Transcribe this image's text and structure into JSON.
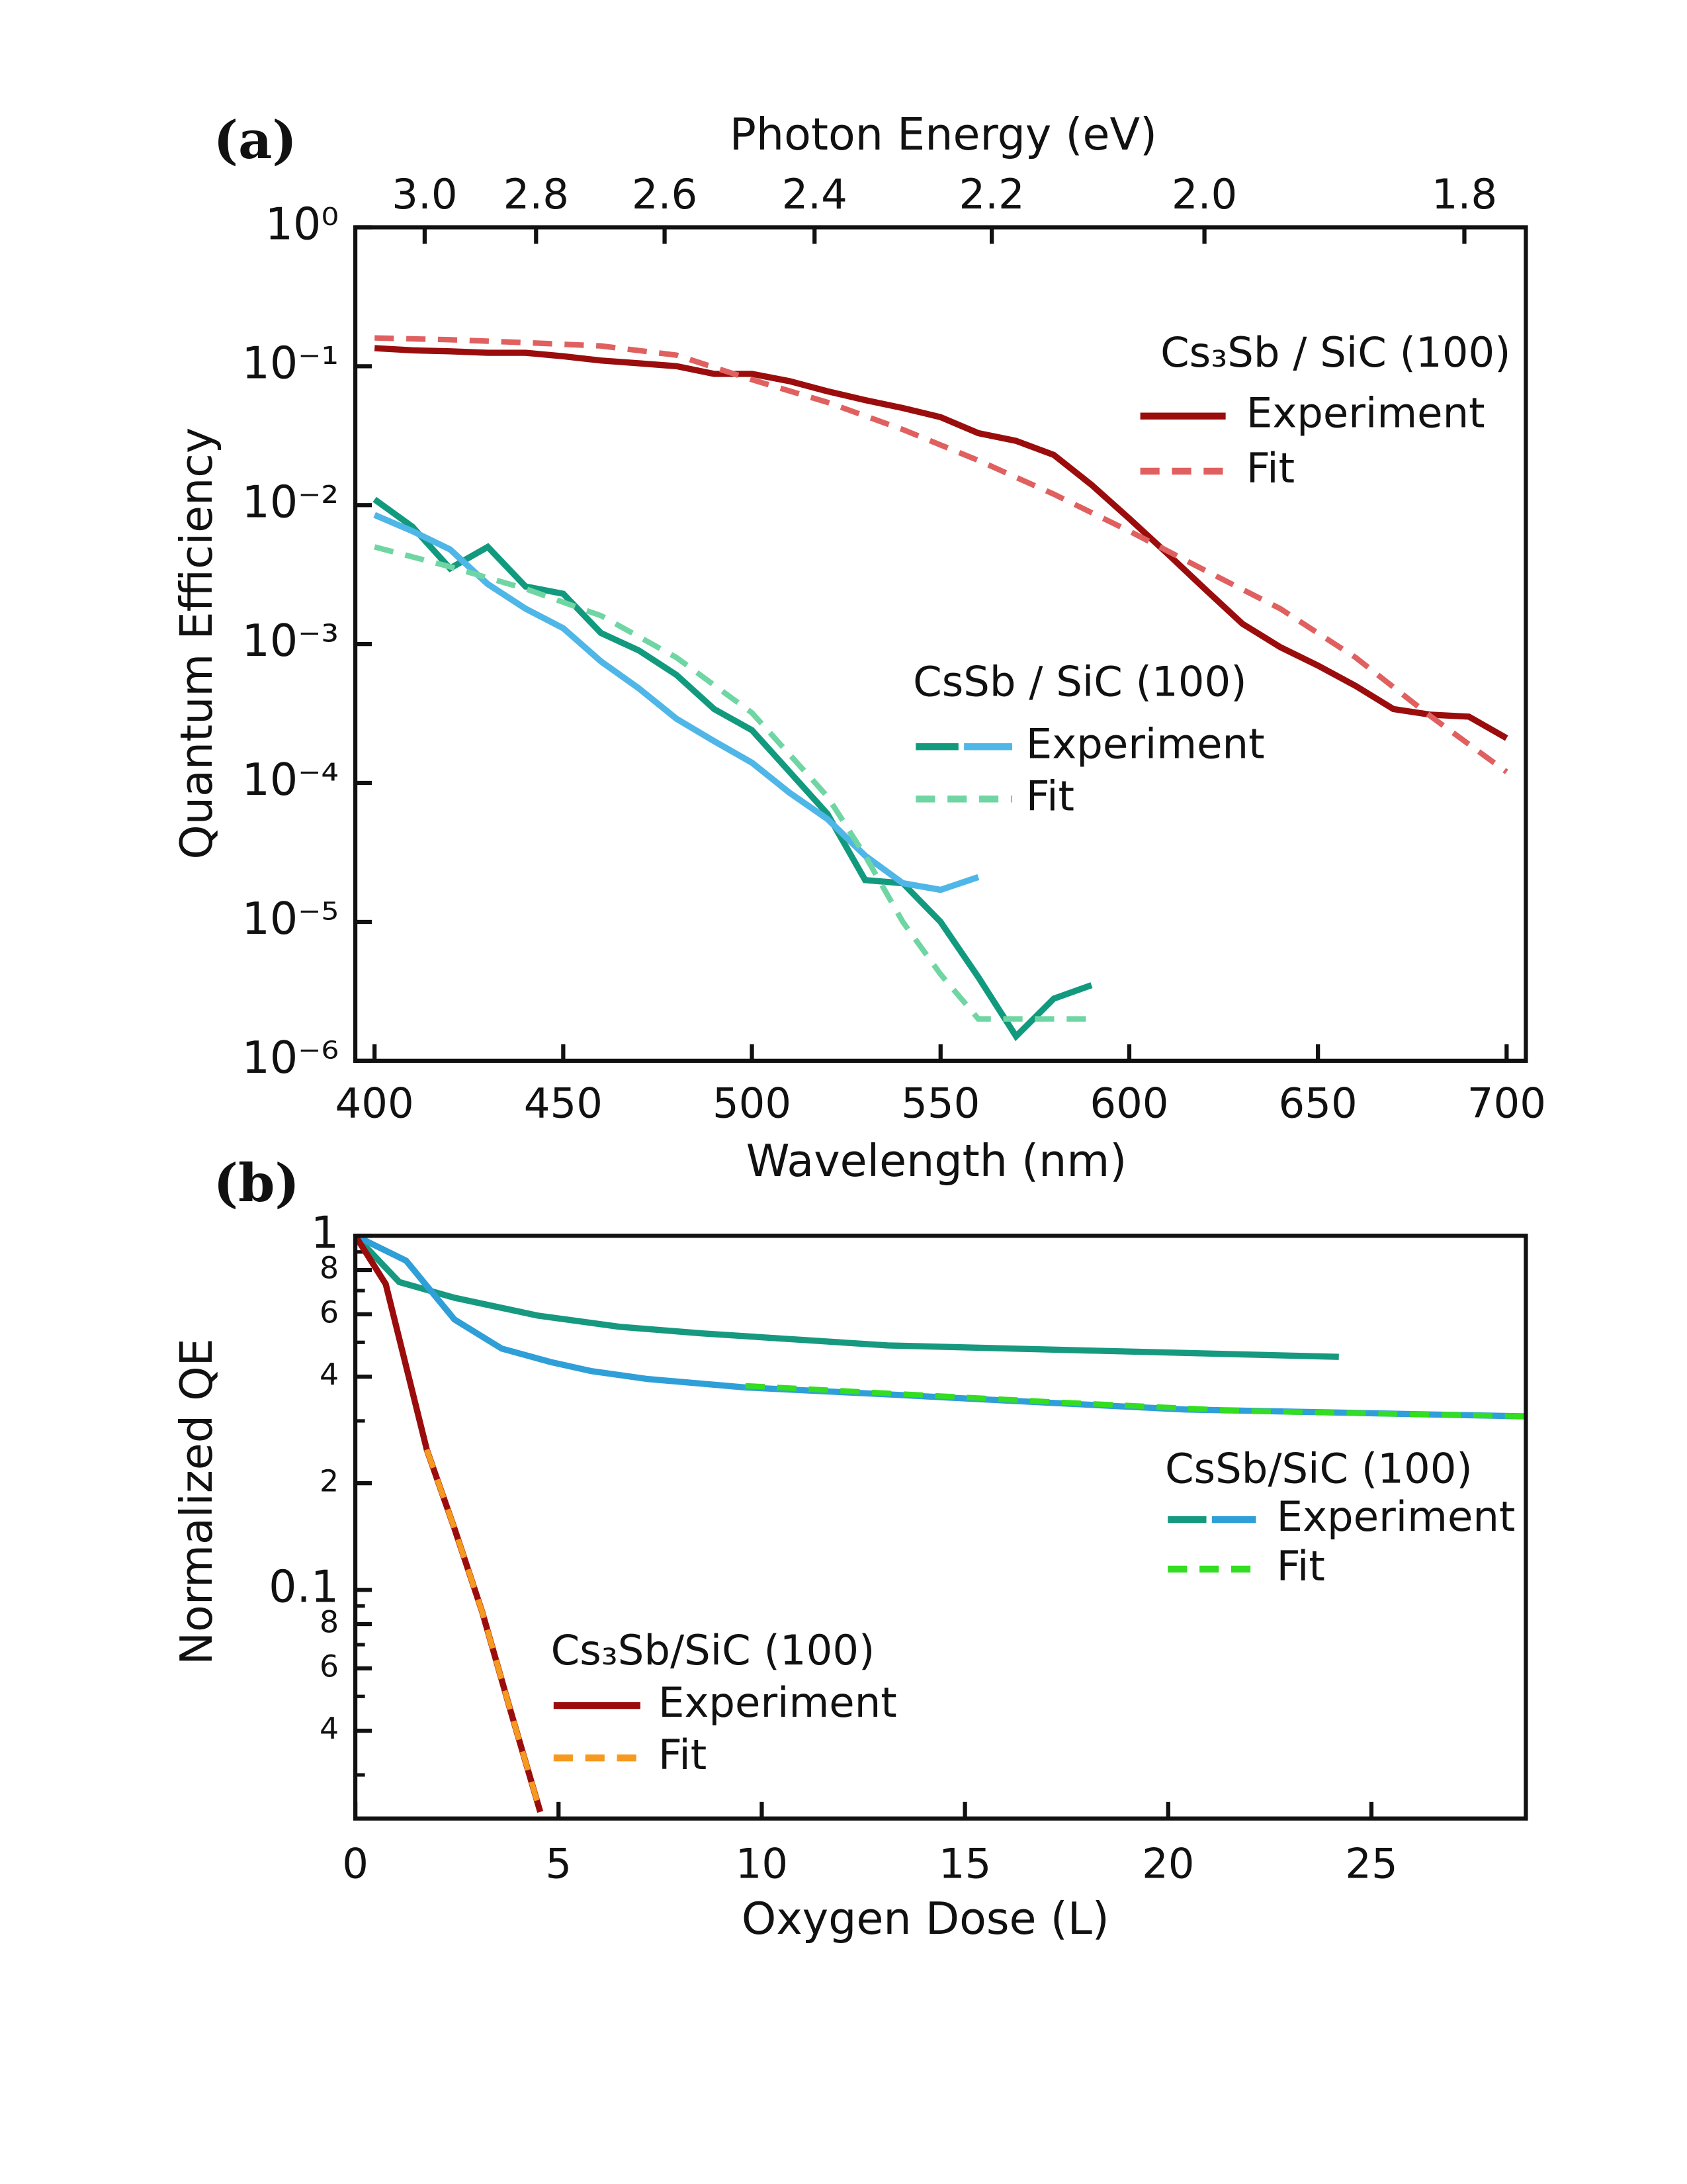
{
  "chart_data": [
    {
      "type": "line",
      "panel_label": "(a)",
      "x_label": "Wavelength (nm)",
      "y_label": "Quantum Efficiency",
      "x2_label": "Photon Energy (eV)",
      "log_y": true,
      "xlim": [
        394.9,
        705.1
      ],
      "ylim": [
        1e-06,
        1
      ],
      "xticks": [
        400,
        450,
        500,
        550,
        600,
        650,
        700
      ],
      "x2ticks": [
        {
          "value": 3,
          "label": "3.0"
        },
        2.8,
        2.6,
        2.4,
        2.2,
        {
          "value": 2,
          "label": "2.0"
        },
        1.8
      ],
      "yticks": [
        {
          "value": 1,
          "label": "10⁰"
        },
        {
          "value": 0.1,
          "label": "10⁻¹"
        },
        {
          "value": 0.01,
          "label": "10⁻²"
        },
        {
          "value": 0.001,
          "label": "10⁻³"
        },
        {
          "value": 0.0001,
          "label": "10⁻⁴"
        },
        {
          "value": 1e-05,
          "label": "10⁻⁵"
        },
        {
          "value": 1e-06,
          "label": "10⁻⁶"
        }
      ],
      "groups": [
        {
          "title": "Cs₃Sb / SiC (100)",
          "series": [
            {
              "name": "Experiment",
              "dash": false,
              "lines": [
                {
                  "color": "#9b0d0d",
                  "x": [
                    400,
                    410,
                    420,
                    430,
                    440,
                    450,
                    460,
                    470,
                    480,
                    490,
                    500,
                    510,
                    520,
                    530,
                    540,
                    550,
                    560,
                    570,
                    580,
                    590,
                    600,
                    610,
                    620,
                    630,
                    640,
                    650,
                    660,
                    670,
                    680,
                    690,
                    700
                  ],
                  "values": [
                    0.135,
                    0.13,
                    0.128,
                    0.125,
                    0.125,
                    0.118,
                    0.11,
                    0.105,
                    0.1,
                    0.088,
                    0.088,
                    0.078,
                    0.066,
                    0.057,
                    0.05,
                    0.043,
                    0.033,
                    0.029,
                    0.023,
                    0.014,
                    0.008,
                    0.0045,
                    0.0025,
                    0.0014,
                    0.00095,
                    0.0007,
                    0.0005,
                    0.00034,
                    0.00031,
                    0.0003,
                    0.00021
                  ]
                }
              ]
            },
            {
              "name": "Fit",
              "dash": true,
              "lines": [
                {
                  "color": "#e06060",
                  "x": [
                    400,
                    420,
                    440,
                    460,
                    480,
                    500,
                    520,
                    540,
                    560,
                    580,
                    600,
                    620,
                    640,
                    660,
                    680,
                    700
                  ],
                  "values": [
                    0.16,
                    0.155,
                    0.148,
                    0.14,
                    0.12,
                    0.08,
                    0.055,
                    0.035,
                    0.021,
                    0.012,
                    0.0065,
                    0.0034,
                    0.0018,
                    0.0008,
                    0.0003,
                    0.00012
                  ]
                }
              ]
            }
          ]
        },
        {
          "title": "CsSb / SiC (100)",
          "series": [
            {
              "name": "Experiment",
              "dash": false,
              "lines": [
                {
                  "color": "#129a7f",
                  "x": [
                    400,
                    410,
                    420,
                    430,
                    440,
                    450,
                    460,
                    470,
                    480,
                    490,
                    500,
                    510,
                    520,
                    530,
                    540,
                    550,
                    560,
                    570,
                    580,
                    590
                  ],
                  "values": [
                    0.011,
                    0.007,
                    0.0035,
                    0.005,
                    0.0026,
                    0.0023,
                    0.0012,
                    0.0009,
                    0.0006,
                    0.00034,
                    0.00024,
                    0.00012,
                    6e-05,
                    2e-05,
                    1.9e-05,
                    1e-05,
                    4e-06,
                    1.5e-06,
                    2.8e-06,
                    3.5e-06
                  ]
                },
                {
                  "color": "#4fb6e8",
                  "x": [
                    400,
                    410,
                    420,
                    430,
                    440,
                    450,
                    460,
                    470,
                    480,
                    490,
                    500,
                    510,
                    520,
                    530,
                    540,
                    550,
                    560
                  ],
                  "values": [
                    0.0085,
                    0.0065,
                    0.0048,
                    0.0027,
                    0.0018,
                    0.0013,
                    0.00075,
                    0.00048,
                    0.00029,
                    0.0002,
                    0.00014,
                    8.5e-05,
                    5.5e-05,
                    3e-05,
                    1.9e-05,
                    1.7e-05,
                    2.1e-05
                  ]
                }
              ]
            },
            {
              "name": "Fit",
              "dash": true,
              "lines": [
                {
                  "color": "#6fd6a3",
                  "x": [
                    400,
                    420,
                    440,
                    460,
                    480,
                    500,
                    520,
                    530,
                    540,
                    550,
                    560,
                    570,
                    590
                  ],
                  "values": [
                    0.005,
                    0.0036,
                    0.0025,
                    0.0016,
                    0.0008,
                    0.00032,
                    8e-05,
                    3e-05,
                    1e-05,
                    4.2e-06,
                    2e-06,
                    2e-06,
                    2e-06
                  ]
                }
              ]
            }
          ]
        }
      ]
    },
    {
      "type": "line",
      "panel_label": "(b)",
      "x_label": "Oxygen Dose (L)",
      "y_label": "Normalized QE",
      "log_y": true,
      "xlim": [
        0,
        28.8
      ],
      "ylim": [
        0.0226,
        1
      ],
      "xticks": [
        0,
        5,
        10,
        15,
        20,
        25
      ],
      "yticks": [
        1,
        {
          "value": 0.8,
          "label": "8"
        },
        {
          "value": 0.6,
          "label": "6"
        },
        {
          "value": 0.4,
          "label": "4"
        },
        {
          "value": 0.2,
          "label": "2"
        },
        0.1,
        {
          "value": 0.08,
          "label": "8"
        },
        {
          "value": 0.06,
          "label": "6"
        },
        {
          "value": 0.04,
          "label": "4"
        }
      ],
      "yminorticks": [
        0.9,
        0.7,
        0.5,
        0.3,
        0.09,
        0.07,
        0.05,
        0.03
      ],
      "groups": [
        {
          "title": "CsSb/SiC (100)",
          "series": [
            {
              "name": "Experiment",
              "dash": false,
              "lines": [
                {
                  "color": "#16997f",
                  "x": [
                    0,
                    1.08,
                    2.44,
                    4.48,
                    6.51,
                    8.55,
                    13.1,
                    24.2
                  ],
                  "values": [
                    1,
                    0.74,
                    0.668,
                    0.595,
                    0.553,
                    0.53,
                    0.49,
                    0.455
                  ]
                },
                {
                  "color": "#2f9fd8",
                  "x": [
                    0,
                    1.25,
                    2.44,
                    3.6,
                    4.8,
                    5.8,
                    7.2,
                    9.6,
                    13,
                    17,
                    20.4,
                    28.8
                  ],
                  "values": [
                    1,
                    0.85,
                    0.58,
                    0.48,
                    0.44,
                    0.415,
                    0.394,
                    0.373,
                    0.357,
                    0.338,
                    0.323,
                    0.309
                  ]
                }
              ]
            },
            {
              "name": "Fit",
              "dash": true,
              "lines": [
                {
                  "color": "#33dd22",
                  "x": [
                    9.6,
                    17,
                    21.8,
                    28.8
                  ],
                  "values": [
                    0.377,
                    0.34,
                    0.32,
                    0.309
                  ]
                }
              ]
            }
          ]
        },
        {
          "title": "Cs₃Sb/SiC (100)",
          "series": [
            {
              "name": "Experiment",
              "dash": false,
              "lines": [
                {
                  "color": "#9b0d0d",
                  "x": [
                    0,
                    0.75,
                    1.76,
                    2.44,
                    3.12,
                    3.8,
                    4.55
                  ],
                  "values": [
                    1,
                    0.73,
                    0.249,
                    0.149,
                    0.0867,
                    0.0463,
                    0.0236
                  ]
                }
              ]
            },
            {
              "name": "Fit",
              "dash": true,
              "lines": [
                {
                  "color": "#f59a1f",
                  "x": [
                    1.76,
                    2.44,
                    3.12,
                    3.8,
                    4.55
                  ],
                  "values": [
                    0.249,
                    0.149,
                    0.0867,
                    0.0463,
                    0.0236
                  ]
                }
              ]
            }
          ]
        }
      ]
    }
  ]
}
